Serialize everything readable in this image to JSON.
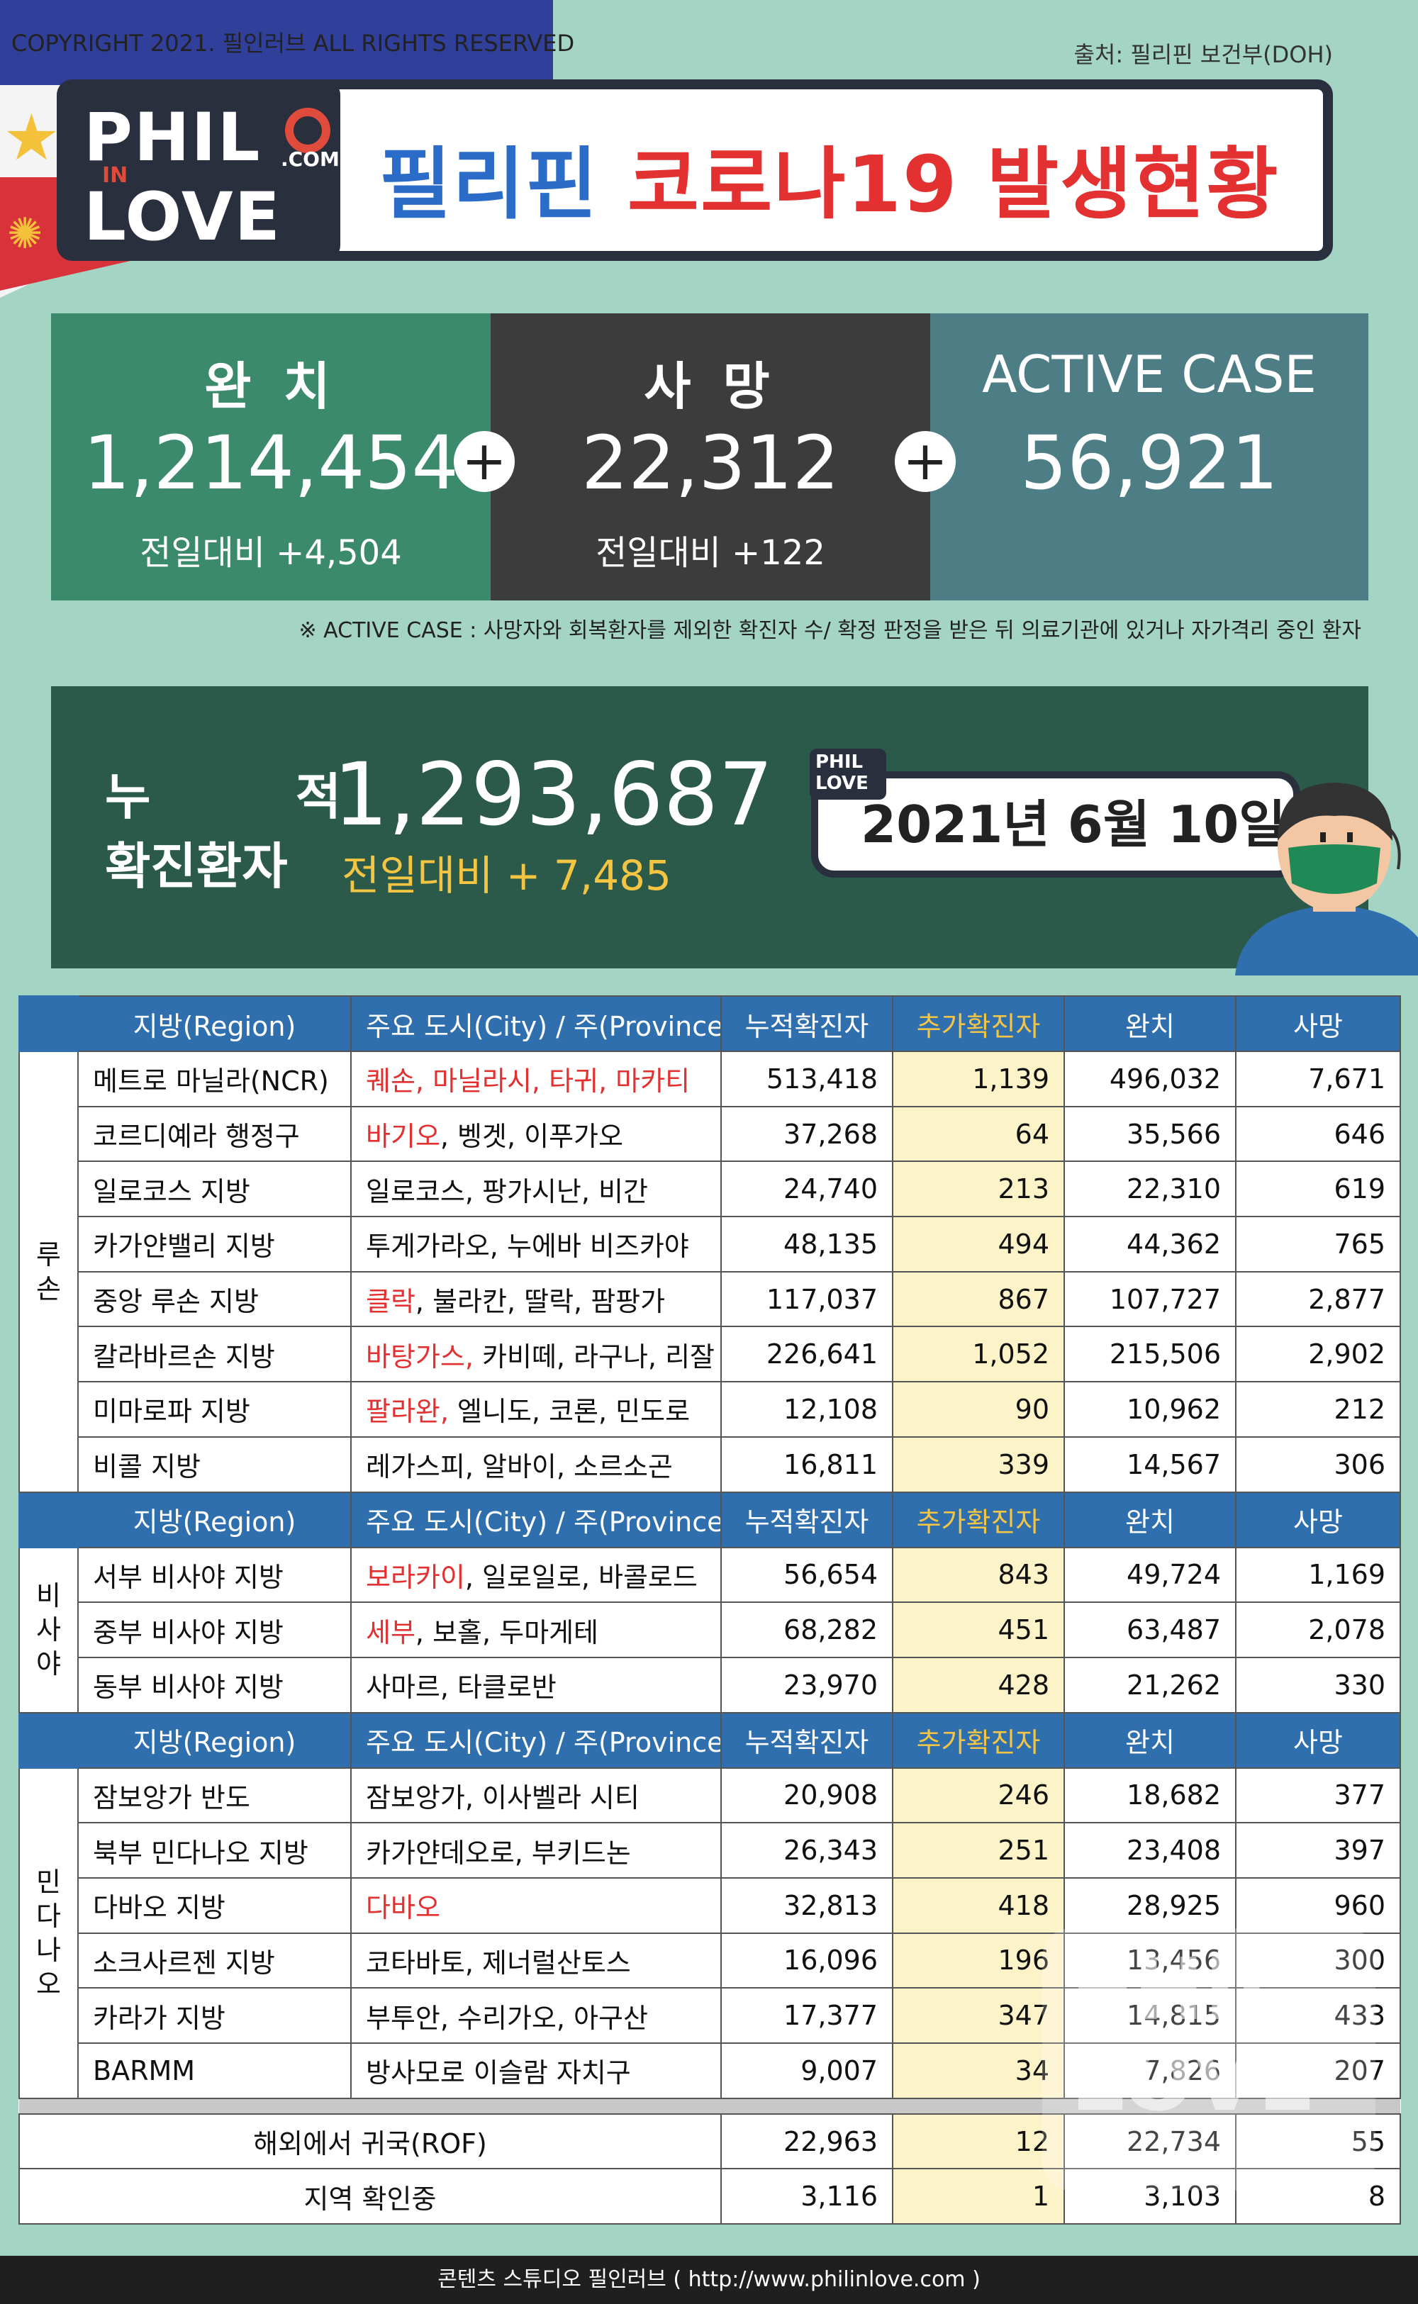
{
  "copyright": "COPYRIGHT 2021. 필인러브 ALL RIGHTS RESERVED",
  "source": "출처: 필리핀 보건부(DOH)",
  "logo": {
    "line1": "PHIL",
    "in": "IN",
    "line2": "LOVE",
    "com": ".COM"
  },
  "title": {
    "part1": "필리핀",
    "part2": "코로나19 발생현황"
  },
  "stats": [
    {
      "label": "완 치",
      "value": "1,214,454",
      "sub": "전일대비 +4,504",
      "color": "#3b8a6b"
    },
    {
      "label": "사 망",
      "value": "22,312",
      "sub": "전일대비 +122",
      "color": "#3c3c3c"
    },
    {
      "label": "ACTIVE CASE",
      "value": "56,921",
      "sub": "",
      "color": "#4d7e86"
    }
  ],
  "note": "※ ACTIVE CASE : 사망자와 회복환자를 제외한 확진자 수/ 확정 판정을 받은 뒤 의료기관에 있거나 자가격리 중인 환자",
  "cumulative": {
    "label1": "누 적",
    "label2": "확진환자",
    "value": "1,293,687",
    "sub": "전일대비 + 7,485",
    "date": "2021년 6월 10일"
  },
  "table": {
    "headers": [
      "지방(Region)",
      "주요 도시(City) / 주(Province)",
      "누적확진자",
      "추가확진자",
      "완치",
      "사망"
    ],
    "groups": [
      {
        "name": "루손",
        "rows": [
          {
            "region": "메트로 마닐라(NCR)",
            "city_red": "퀘손, 마닐라시, 타귀, 마카티",
            "city": "",
            "cum": "513,418",
            "add": "1,139",
            "rec": "496,032",
            "death": "7,671"
          },
          {
            "region": "코르디예라 행정구",
            "city_red": "바기오",
            "city": ", 벵겟, 이푸가오",
            "cum": "37,268",
            "add": "64",
            "rec": "35,566",
            "death": "646"
          },
          {
            "region": "일로코스 지방",
            "city_red": "",
            "city": "일로코스, 팡가시난, 비간",
            "cum": "24,740",
            "add": "213",
            "rec": "22,310",
            "death": "619"
          },
          {
            "region": "카가얀밸리 지방",
            "city_red": "",
            "city": "투게가라오, 누에바 비즈카야",
            "cum": "48,135",
            "add": "494",
            "rec": "44,362",
            "death": "765"
          },
          {
            "region": "중앙 루손 지방",
            "city_red": "클락",
            "city": ", 불라칸, 딸락, 팜팡가",
            "cum": "117,037",
            "add": "867",
            "rec": "107,727",
            "death": "2,877"
          },
          {
            "region": "칼라바르손 지방",
            "city_red": "바탕가스,",
            "city": " 카비떼, 라구나, 리잘",
            "cum": "226,641",
            "add": "1,052",
            "rec": "215,506",
            "death": "2,902"
          },
          {
            "region": "미마로파 지방",
            "city_red": "팔라완,",
            "city": " 엘니도, 코론, 민도로",
            "cum": "12,108",
            "add": "90",
            "rec": "10,962",
            "death": "212"
          },
          {
            "region": "비콜 지방",
            "city_red": "",
            "city": "레가스피, 알바이, 소르소곤",
            "cum": "16,811",
            "add": "339",
            "rec": "14,567",
            "death": "306"
          }
        ]
      },
      {
        "name": "비사야",
        "rows": [
          {
            "region": "서부 비사야 지방",
            "city_red": "보라카이",
            "city": ", 일로일로, 바콜로드",
            "cum": "56,654",
            "add": "843",
            "rec": "49,724",
            "death": "1,169"
          },
          {
            "region": "중부 비사야 지방",
            "city_red": "세부",
            "city": ", 보홀, 두마게테",
            "cum": "68,282",
            "add": "451",
            "rec": "63,487",
            "death": "2,078"
          },
          {
            "region": "동부 비사야 지방",
            "city_red": "",
            "city": "사마르, 타클로반",
            "cum": "23,970",
            "add": "428",
            "rec": "21,262",
            "death": "330"
          }
        ]
      },
      {
        "name": "민다나오",
        "rows": [
          {
            "region": "잠보앙가 반도",
            "city_red": "",
            "city": "잠보앙가, 이사벨라 시티",
            "cum": "20,908",
            "add": "246",
            "rec": "18,682",
            "death": "377"
          },
          {
            "region": "북부 민다나오 지방",
            "city_red": "",
            "city": "카가얀데오로, 부키드논",
            "cum": "26,343",
            "add": "251",
            "rec": "23,408",
            "death": "397"
          },
          {
            "region": "다바오 지방",
            "city_red": "다바오",
            "city": "",
            "cum": "32,813",
            "add": "418",
            "rec": "28,925",
            "death": "960"
          },
          {
            "region": "소크사르젠 지방",
            "city_red": "",
            "city": "코타바토, 제너럴산토스",
            "cum": "16,096",
            "add": "196",
            "rec": "13,456",
            "death": "300"
          },
          {
            "region": "카라가 지방",
            "city_red": "",
            "city": "부투안, 수리가오, 아구산",
            "cum": "17,377",
            "add": "347",
            "rec": "14,815",
            "death": "433"
          },
          {
            "region": "BARMM",
            "city_red": "",
            "city": "방사모로 이슬람 자치구",
            "cum": "9,007",
            "add": "34",
            "rec": "7,826",
            "death": "207"
          }
        ]
      }
    ],
    "extra": [
      {
        "label": "해외에서 귀국(ROF)",
        "cum": "22,963",
        "add": "12",
        "rec": "22,734",
        "death": "55"
      },
      {
        "label": "지역 확인중",
        "cum": "3,116",
        "add": "1",
        "rec": "3,103",
        "death": "8"
      }
    ]
  },
  "footer": "콘텐츠 스튜디오 필인러브 ( http://www.philinlove.com )"
}
